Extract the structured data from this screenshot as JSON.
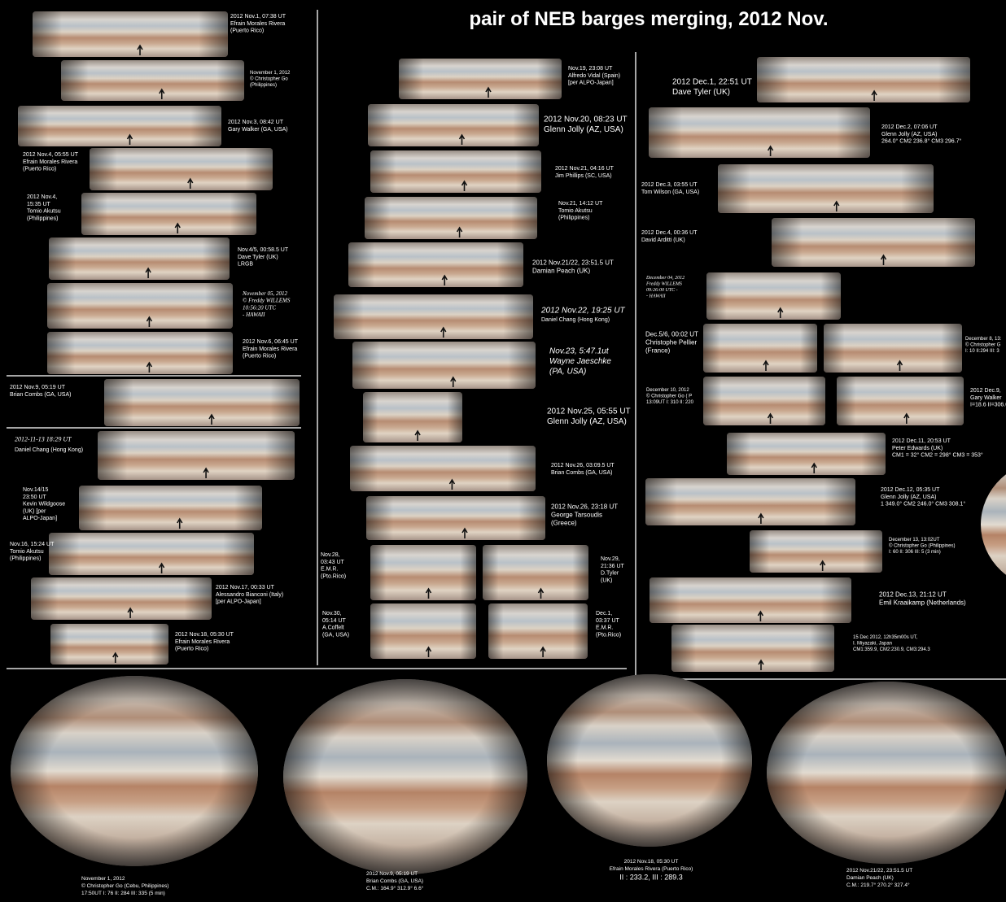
{
  "title": "pair of NEB barges merging, 2012 Nov.",
  "left": [
    {
      "lines": [
        "2012 Nov.1, 07:38 UT",
        "Efrain Morales Rivera",
        "(Puerto Rico)"
      ]
    },
    {
      "lines": [
        "November 1, 2012",
        "© Christopher Go",
        "(Philippines)"
      ]
    },
    {
      "lines": [
        "2012 Nov.3, 08:42 UT",
        "Gary Walker (GA, USA)"
      ]
    },
    {
      "lines": [
        "2012 Nov.4, 05:55 UT",
        "Efrain Morales Rivera",
        "(Puerto Rico)"
      ]
    },
    {
      "lines": [
        "2012 Nov.4,",
        "15:35 UT",
        "Tomio Akutsu",
        "(Philippines)"
      ]
    },
    {
      "lines": [
        "Nov.4/5, 00:58.5 UT",
        "Dave Tyler (UK)",
        "LRGB"
      ]
    },
    {
      "lines": [
        "November 05, 2012",
        "© Freddy WILLEMS",
        "10:56:20  UTC",
        "-  HAWAII"
      ]
    },
    {
      "lines": [
        "2012 Nov.6, 06:45 UT",
        "Efrain Morales Rivera",
        "(Puerto Rico)"
      ]
    },
    {
      "lines": [
        "2012 Nov.9, 05:19 UT",
        "Brian Combs (GA, USA)"
      ]
    },
    {
      "lines": [
        "2012-11-13  18:29 UT"
      ]
    },
    {
      "lines": [
        "Daniel Chang (Hong Kong)"
      ]
    },
    {
      "lines": [
        "Nov.14/15",
        "23:50 UT",
        "Kevin Wildgoose",
        "(UK)  [per",
        "ALPO-Japan]"
      ]
    },
    {
      "lines": [
        "Nov.16, 15:24 UT",
        "Tomio Akutsu",
        "(Philippines)"
      ]
    },
    {
      "lines": [
        "2012 Nov.17, 00:33 UT",
        "Alessandro Bianconi (Italy)",
        "[per ALPO-Japan]"
      ]
    },
    {
      "lines": [
        "2012 Nov.18, 05:30 UT",
        "Efrain Morales Rivera",
        "(Puerto Rico)"
      ]
    }
  ],
  "middle": [
    {
      "lines": [
        "Nov.19, 23:08 UT",
        "Alfredo Vidal (Spain)",
        "[per ALPO-Japan]"
      ]
    },
    {
      "lines": [
        "2012 Nov.20, 08:23 UT",
        "Glenn Jolly (AZ, USA)"
      ]
    },
    {
      "lines": [
        "2012 Nov.21, 04:16 UT",
        "Jim Phillips  (SC, USA)"
      ]
    },
    {
      "lines": [
        "Nov.21, 14:12 UT",
        "Tomio Akutsu",
        "(Philippines)"
      ]
    },
    {
      "lines": [
        "2012 Nov.21/22, 23:51.5 UT",
        "Damian Peach (UK)"
      ]
    },
    {
      "lines": [
        "2012 Nov.22, 19:25 UT"
      ]
    },
    {
      "lines": [
        "Daniel Chang (Hong Kong)"
      ]
    },
    {
      "lines": [
        "Nov.23, 5:47.1ut",
        "Wayne Jaeschke",
        "(PA, USA)"
      ]
    },
    {
      "lines": [
        "2012 Nov.25, 05:55 UT",
        "Glenn Jolly (AZ, USA)"
      ]
    },
    {
      "lines": [
        "2012 Nov.26, 03:09.5 UT",
        "Brian Combs (GA, USA)"
      ]
    },
    {
      "lines": [
        "2012 Nov.26, 23:18 UT",
        "George Tarsoudis",
        "(Greece)"
      ]
    },
    {
      "lines": [
        "Nov.28,",
        "03:43 UT",
        "E.M.R.",
        "(Pto.Rico)"
      ]
    },
    {
      "lines": [
        "Nov.29,",
        "21:36 UT",
        "D.Tyler",
        "(UK)"
      ]
    },
    {
      "lines": [
        "Nov.30,",
        "05:14 UT",
        "A.Coffelt",
        "(GA, USA)"
      ]
    },
    {
      "lines": [
        "Dec.1,",
        "03:37 UT",
        "E.M.R.",
        "(Pto.Rico)"
      ]
    }
  ],
  "right": [
    {
      "lines": [
        "2012 Dec.1, 22:51 UT",
        "Dave Tyler (UK)"
      ]
    },
    {
      "lines": [
        "2012 Dec.2, 07:06 UT",
        "Glenn Jolly (AZ, USA)",
        "264.0°  CM2 236.8°  CM3 296.7°"
      ]
    },
    {
      "lines": [
        "2012 Dec.3, 03:55 UT",
        "Tom Wilson (GA, USA)"
      ]
    },
    {
      "lines": [
        "2012 Dec.4, 00:36 UT",
        "David Arditti (UK)"
      ]
    },
    {
      "lines": [
        "December 04, 2012",
        "Freddy WILLEMS",
        "09:26:00 UTC  -",
        "-  HAWAII"
      ]
    },
    {
      "lines": [
        "Dec.5/6, 00:02 UT",
        "Christophe Pellier",
        "(France)"
      ]
    },
    {
      "lines": [
        "December 8, 13:",
        "© Christopher G",
        "I: 10  II:294  III: 3"
      ]
    },
    {
      "lines": [
        "December 10, 2012",
        "© Christopher Go  ( P",
        "13:09UT  I: 310 II: 220"
      ]
    },
    {
      "lines": [
        "2012 Dec.9,",
        "Gary Walker",
        "I=18.6  II=306.0"
      ]
    },
    {
      "lines": [
        "2012 Dec.11, 20:53 UT",
        "Peter Edwards (UK)",
        "CM1 = 32° CM2 = 298° CM3 = 353°"
      ]
    },
    {
      "lines": [
        "2012 Dec.12, 05:35 UT",
        "Glenn Jolly (AZ, USA)",
        "1 349.0°  CM2 246.0°  CM3 308.1°"
      ]
    },
    {
      "lines": [
        "December 13,  13:02UT",
        "© Christopher Go  (Philippines)",
        "I: 60  II: 306  III: 5  (3 min)"
      ]
    },
    {
      "lines": [
        "2012 Dec.13, 21:12 UT",
        "Emil Kraaikamp (Netherlands)"
      ]
    },
    {
      "lines": [
        "15 Dec 2012, 12h35m00s UT,",
        "I. Miyazaki, Japan",
        "CM1:359.9, CM2:230.9, CM3:294.3"
      ]
    }
  ],
  "bottom": [
    {
      "lines": [
        "November 1, 2012",
        "© Christopher Go  (Cebu, Philippines)",
        "17:50UT  I: 76  II: 284  III: 335  (5 min)"
      ]
    },
    {
      "lines": [
        "2012 Nov.9, 05:19 UT",
        "Brian Combs (GA, USA)",
        "C.M.:   164.9°   312.9°    6.6°"
      ]
    },
    {
      "lines": [
        "2012 Nov.18, 05:30 UT",
        "Efrain Morales Rivera (Puerto Rico)",
        "II : 233.2,  III : 289.3"
      ]
    },
    {
      "lines": [
        "2012 Nov.21/22, 23:51.5 UT",
        "Damian Peach (UK)",
        "C.M.:   219.7°   270.2°   327.4°"
      ]
    }
  ]
}
